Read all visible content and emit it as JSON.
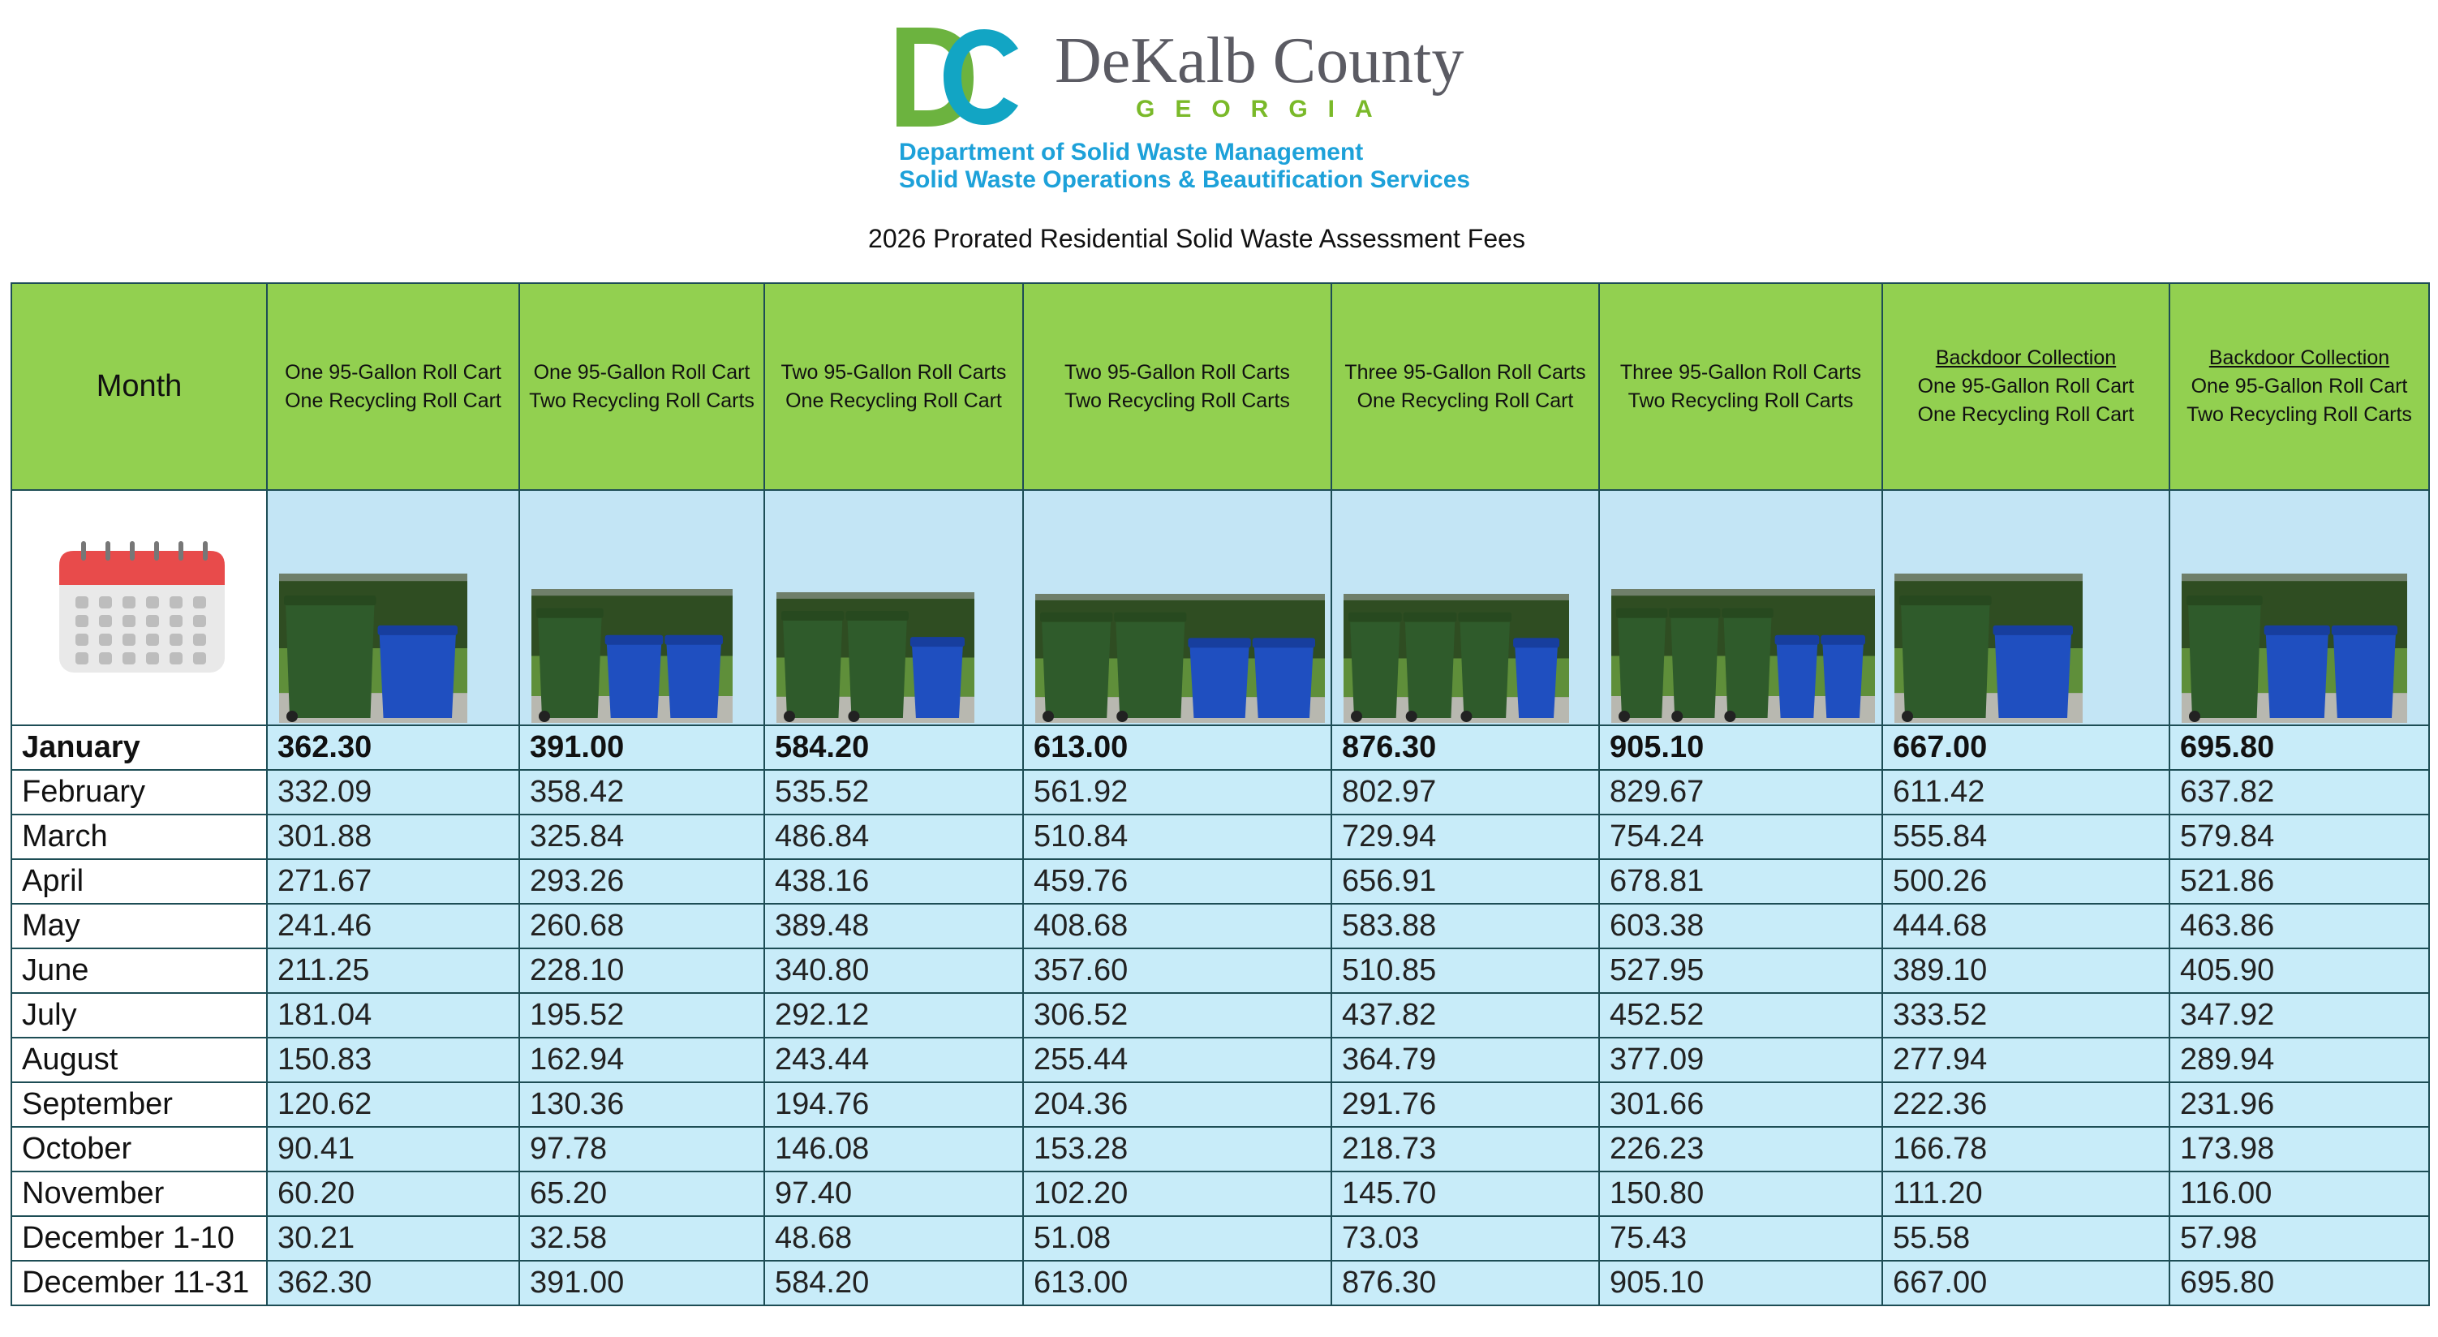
{
  "header": {
    "logo_name": "DeKalb County",
    "logo_state": "GEORGIA",
    "department": "Department of Solid Waste Management",
    "division": "Solid Waste Operations & Beautification Services",
    "title": "2026 Prorated Residential Solid Waste Assessment Fees"
  },
  "table": {
    "month_header": "Month",
    "columns": [
      {
        "lines": [
          "One 95-Gallon Roll Cart",
          "One Recycling Roll Cart"
        ]
      },
      {
        "lines": [
          "One 95-Gallon Roll Cart",
          "Two Recycling Roll Carts"
        ]
      },
      {
        "lines": [
          "Two 95-Gallon Roll Carts",
          "One Recycling Roll Cart"
        ]
      },
      {
        "lines": [
          "Two 95-Gallon Roll Carts",
          "Two Recycling Roll Carts"
        ]
      },
      {
        "lines": [
          "Three 95-Gallon Roll Carts",
          "One Recycling Roll Cart"
        ]
      },
      {
        "lines": [
          "Three 95-Gallon Roll Carts",
          "Two Recycling Roll Carts"
        ]
      },
      {
        "heading": "Backdoor Collection",
        "lines": [
          "One 95-Gallon Roll Cart",
          "One Recycling Roll Cart"
        ]
      },
      {
        "heading": "Backdoor Collection",
        "lines": [
          "One 95-Gallon Roll Cart",
          "Two Recycling Roll Carts"
        ]
      }
    ],
    "rows": [
      {
        "month": "January",
        "fees": [
          "362.30",
          "391.00",
          "584.20",
          "613.00",
          "876.30",
          "905.10",
          "667.00",
          "695.80"
        ]
      },
      {
        "month": "February",
        "fees": [
          "332.09",
          "358.42",
          "535.52",
          "561.92",
          "802.97",
          "829.67",
          "611.42",
          "637.82"
        ]
      },
      {
        "month": "March",
        "fees": [
          "301.88",
          "325.84",
          "486.84",
          "510.84",
          "729.94",
          "754.24",
          "555.84",
          "579.84"
        ]
      },
      {
        "month": "April",
        "fees": [
          "271.67",
          "293.26",
          "438.16",
          "459.76",
          "656.91",
          "678.81",
          "500.26",
          "521.86"
        ]
      },
      {
        "month": "May",
        "fees": [
          "241.46",
          "260.68",
          "389.48",
          "408.68",
          "583.88",
          "603.38",
          "444.68",
          "463.86"
        ]
      },
      {
        "month": "June",
        "fees": [
          "211.25",
          "228.10",
          "340.80",
          "357.60",
          "510.85",
          "527.95",
          "389.10",
          "405.90"
        ]
      },
      {
        "month": "July",
        "fees": [
          "181.04",
          "195.52",
          "292.12",
          "306.52",
          "437.82",
          "452.52",
          "333.52",
          "347.92"
        ]
      },
      {
        "month": "August",
        "fees": [
          "150.83",
          "162.94",
          "243.44",
          "255.44",
          "364.79",
          "377.09",
          "277.94",
          "289.94"
        ]
      },
      {
        "month": "September",
        "fees": [
          "120.62",
          "130.36",
          "194.76",
          "204.36",
          "291.76",
          "301.66",
          "222.36",
          "231.96"
        ]
      },
      {
        "month": "October",
        "fees": [
          "90.41",
          "97.78",
          "146.08",
          "153.28",
          "218.73",
          "226.23",
          "166.78",
          "173.98"
        ]
      },
      {
        "month": "November",
        "fees": [
          "60.20",
          "65.20",
          "97.40",
          "102.20",
          "145.70",
          "150.80",
          "111.20",
          "116.00"
        ]
      },
      {
        "month": "December 1-10",
        "fees": [
          "30.21",
          "32.58",
          "48.68",
          "51.08",
          "73.03",
          "75.43",
          "55.58",
          "57.98"
        ]
      },
      {
        "month": "December 11-31",
        "fees": [
          "362.30",
          "391.00",
          "584.20",
          "613.00",
          "876.30",
          "905.10",
          "667.00",
          "695.80"
        ]
      }
    ]
  }
}
